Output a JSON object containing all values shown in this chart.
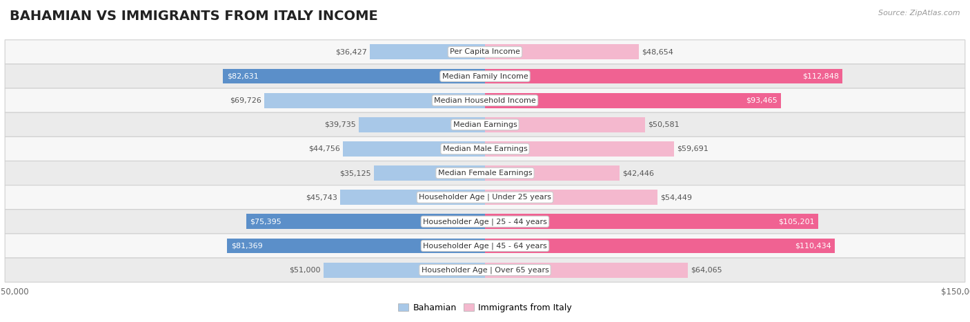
{
  "title": "BAHAMIAN VS IMMIGRANTS FROM ITALY INCOME",
  "source": "Source: ZipAtlas.com",
  "categories": [
    "Per Capita Income",
    "Median Family Income",
    "Median Household Income",
    "Median Earnings",
    "Median Male Earnings",
    "Median Female Earnings",
    "Householder Age | Under 25 years",
    "Householder Age | 25 - 44 years",
    "Householder Age | 45 - 64 years",
    "Householder Age | Over 65 years"
  ],
  "bahamian": [
    36427,
    82631,
    69726,
    39735,
    44756,
    35125,
    45743,
    75395,
    81369,
    51000
  ],
  "italy": [
    48654,
    112848,
    93465,
    50581,
    59691,
    42446,
    54449,
    105201,
    110434,
    64065
  ],
  "max_val": 150000,
  "bar_color_blue_light": "#a8c8e8",
  "bar_color_blue_dark": "#5b8fc9",
  "bar_color_pink_light": "#f4b8ce",
  "bar_color_pink_dark": "#f06292",
  "row_bg_light": "#f7f7f7",
  "row_bg_dark": "#ebebeb",
  "legend_blue": "Bahamian",
  "legend_pink": "Immigrants from Italy",
  "dark_threshold": 70000,
  "title_fontsize": 14,
  "label_fontsize": 8.0,
  "value_fontsize": 8.0,
  "tick_fontsize": 8.5
}
